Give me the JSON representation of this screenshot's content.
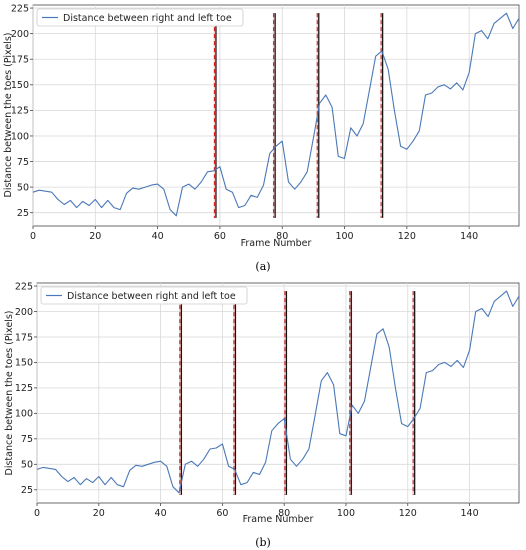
{
  "chart_data": [
    {
      "type": "line",
      "panel": "(a)",
      "xlabel": "Frame Number",
      "ylabel": "Distance between the toes (Pixels)",
      "xlim": [
        0,
        156
      ],
      "ylim": [
        12,
        228
      ],
      "xticks": [
        0,
        20,
        40,
        60,
        80,
        100,
        120,
        140
      ],
      "yticks": [
        25,
        50,
        75,
        100,
        125,
        150,
        175,
        200,
        225
      ],
      "grid": true,
      "legend_position": "top-left",
      "series": [
        {
          "name": "Distance between right and left toe",
          "color": "#4a78b8",
          "x": [
            0,
            2,
            4,
            6,
            8,
            10,
            12,
            14,
            16,
            18,
            20,
            22,
            24,
            26,
            28,
            30,
            32,
            34,
            36,
            38,
            40,
            42,
            44,
            46,
            48,
            50,
            52,
            54,
            56,
            58,
            60,
            62,
            64,
            66,
            68,
            70,
            72,
            74,
            76,
            78,
            80,
            82,
            84,
            86,
            88,
            90,
            92,
            94,
            96,
            98,
            100,
            102,
            104,
            106,
            108,
            110,
            112,
            114,
            116,
            118,
            120,
            122,
            124,
            126,
            128,
            130,
            132,
            134,
            136,
            138,
            140,
            142,
            144,
            146,
            148,
            150,
            152,
            154,
            156
          ],
          "y": [
            45,
            47,
            46,
            45,
            38,
            33,
            37,
            30,
            36,
            32,
            38,
            30,
            37,
            30,
            28,
            44,
            49,
            48,
            50,
            52,
            53,
            48,
            28,
            22,
            50,
            53,
            48,
            55,
            65,
            66,
            70,
            48,
            45,
            30,
            32,
            42,
            40,
            52,
            83,
            90,
            95,
            55,
            48,
            55,
            65,
            98,
            132,
            140,
            128,
            80,
            78,
            108,
            100,
            112,
            145,
            178,
            183,
            165,
            125,
            90,
            87,
            95,
            105,
            140,
            142,
            148,
            150,
            146,
            152,
            145,
            162,
            200,
            203,
            195,
            210,
            215,
            220,
            205,
            215
          ]
        }
      ],
      "event_markers": [
        58.5,
        77.5,
        91.5,
        112
      ]
    },
    {
      "type": "line",
      "panel": "(b)",
      "xlabel": "Frame Number",
      "ylabel": "Distance between the toes (Pixels)",
      "xlim": [
        0,
        156
      ],
      "ylim": [
        12,
        228
      ],
      "xticks": [
        0,
        20,
        40,
        60,
        80,
        100,
        120,
        140
      ],
      "yticks": [
        25,
        50,
        75,
        100,
        125,
        150,
        175,
        200,
        225
      ],
      "grid": true,
      "legend_position": "top-left",
      "series": [
        {
          "name": "Distance between right and left toe",
          "color": "#4a78b8",
          "x": [
            0,
            2,
            4,
            6,
            8,
            10,
            12,
            14,
            16,
            18,
            20,
            22,
            24,
            26,
            28,
            30,
            32,
            34,
            36,
            38,
            40,
            42,
            44,
            46,
            48,
            50,
            52,
            54,
            56,
            58,
            60,
            62,
            64,
            66,
            68,
            70,
            72,
            74,
            76,
            78,
            80,
            82,
            84,
            86,
            88,
            90,
            92,
            94,
            96,
            98,
            100,
            102,
            104,
            106,
            108,
            110,
            112,
            114,
            116,
            118,
            120,
            122,
            124,
            126,
            128,
            130,
            132,
            134,
            136,
            138,
            140,
            142,
            144,
            146,
            148,
            150,
            152,
            154,
            156
          ],
          "y": [
            45,
            47,
            46,
            45,
            38,
            33,
            37,
            30,
            36,
            32,
            38,
            30,
            37,
            30,
            28,
            44,
            49,
            48,
            50,
            52,
            53,
            48,
            28,
            22,
            50,
            53,
            48,
            55,
            65,
            66,
            70,
            48,
            45,
            30,
            32,
            42,
            40,
            52,
            83,
            90,
            95,
            55,
            48,
            55,
            65,
            98,
            132,
            140,
            128,
            80,
            78,
            108,
            100,
            112,
            145,
            178,
            183,
            165,
            125,
            90,
            87,
            95,
            105,
            140,
            142,
            148,
            150,
            146,
            152,
            145,
            162,
            200,
            203,
            195,
            210,
            215,
            220,
            205,
            215
          ]
        }
      ],
      "event_markers": [
        46.5,
        64,
        80.5,
        101.5,
        122
      ]
    }
  ],
  "captions": {
    "a": "(a)",
    "b": "(b)"
  },
  "colors": {
    "grid": "#d9d9d9",
    "line": "#4a78b8",
    "marker_dash": "#d22020",
    "marker_solid": "#111111",
    "marker_band": "#f0b0b0"
  }
}
